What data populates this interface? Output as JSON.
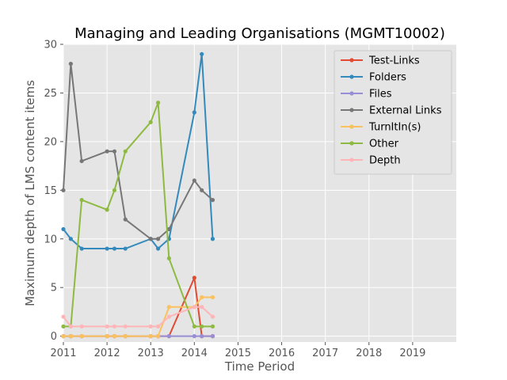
{
  "chart_data": {
    "type": "line",
    "title": "Managing and Leading Organisations (MGMT10002)",
    "xlabel": "Time Period",
    "ylabel": "Maximum depth of LMS content items",
    "xlim": [
      2011,
      2020
    ],
    "ylim": [
      -0.6,
      30
    ],
    "xticks": [
      2011,
      2012,
      2013,
      2014,
      2015,
      2016,
      2017,
      2018,
      2019
    ],
    "yticks": [
      0,
      5,
      10,
      15,
      20,
      25,
      30
    ],
    "grid": true,
    "legend_position": "top-right",
    "series": [
      {
        "name": "Test-Links",
        "color": "#E24A33",
        "x": [
          2011.0,
          2011.17,
          2011.42,
          2012.0,
          2012.17,
          2012.42,
          2013.0,
          2013.17,
          2013.42,
          2014.0,
          2014.17,
          2014.42
        ],
        "y": [
          0,
          0,
          0,
          0,
          0,
          0,
          0,
          0,
          0,
          6,
          0,
          0
        ]
      },
      {
        "name": "Folders",
        "color": "#348ABD",
        "x": [
          2011.0,
          2011.17,
          2011.42,
          2012.0,
          2012.17,
          2012.42,
          2013.0,
          2013.17,
          2013.42,
          2014.0,
          2014.17,
          2014.42
        ],
        "y": [
          11,
          10,
          9,
          9,
          9,
          9,
          10,
          9,
          10,
          23,
          29,
          10
        ]
      },
      {
        "name": "Files",
        "color": "#988ED5",
        "x": [
          2011.0,
          2011.17,
          2011.42,
          2012.0,
          2012.17,
          2012.42,
          2013.0,
          2013.17,
          2013.42,
          2014.0,
          2014.17,
          2014.42
        ],
        "y": [
          0,
          0,
          0,
          0,
          0,
          0,
          0,
          0,
          0,
          0,
          0,
          0
        ]
      },
      {
        "name": "External Links",
        "color": "#777777",
        "x": [
          2011.0,
          2011.17,
          2011.42,
          2012.0,
          2012.17,
          2012.42,
          2013.0,
          2013.17,
          2013.42,
          2014.0,
          2014.17,
          2014.42
        ],
        "y": [
          15,
          28,
          18,
          19,
          19,
          12,
          10,
          10,
          11,
          16,
          15,
          14
        ]
      },
      {
        "name": "TurnItIn(s)",
        "color": "#FBC15E",
        "x": [
          2011.0,
          2011.17,
          2011.42,
          2012.0,
          2012.17,
          2012.42,
          2013.0,
          2013.17,
          2013.42,
          2014.0,
          2014.17,
          2014.42
        ],
        "y": [
          0,
          0,
          0,
          0,
          0,
          0,
          0,
          0,
          3,
          3,
          4,
          4
        ]
      },
      {
        "name": "Other",
        "color": "#8EBA42",
        "x": [
          2011.0,
          2011.17,
          2011.42,
          2012.0,
          2012.17,
          2012.42,
          2013.0,
          2013.17,
          2013.42,
          2014.0,
          2014.17,
          2014.42
        ],
        "y": [
          1,
          1,
          14,
          13,
          15,
          19,
          22,
          24,
          8,
          1,
          1,
          1
        ]
      },
      {
        "name": "Depth",
        "color": "#FFB5B8",
        "x": [
          2011.0,
          2011.17,
          2011.42,
          2012.0,
          2012.17,
          2012.42,
          2013.0,
          2013.17,
          2013.42,
          2014.0,
          2014.17,
          2014.42
        ],
        "y": [
          2,
          1,
          1,
          1,
          1,
          1,
          1,
          1,
          2,
          3,
          3,
          2
        ]
      }
    ]
  }
}
